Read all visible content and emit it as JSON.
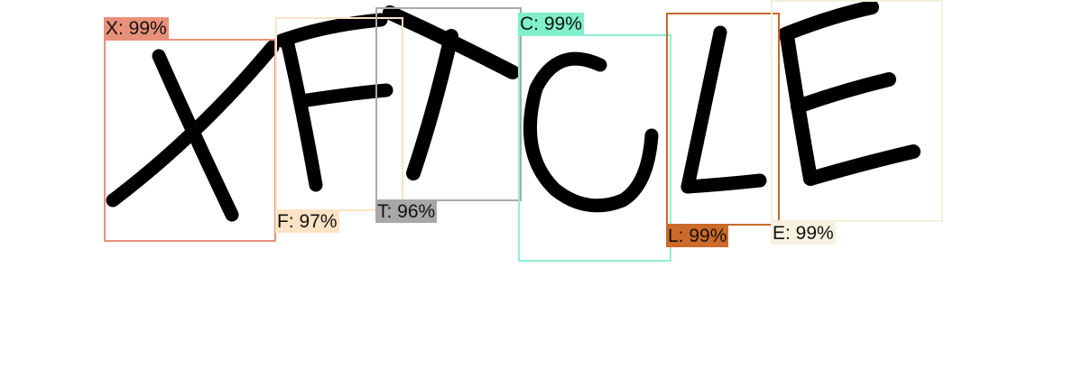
{
  "detections": [
    {
      "char": "X",
      "label": "X: 99%",
      "confidence": 0.99,
      "color": "#e8917a",
      "label_bg": "#e8917a"
    },
    {
      "char": "F",
      "label": "F: 97%",
      "confidence": 0.97,
      "color": "#fbe3c6",
      "label_bg": "#fde3c4"
    },
    {
      "char": "T",
      "label": "T: 96%",
      "confidence": 0.96,
      "color": "#aaaaaa",
      "label_bg": "#a8a8a8"
    },
    {
      "char": "C",
      "label": "C: 99%",
      "confidence": 0.99,
      "color": "#8ef2cf",
      "label_bg": "#7ff0c8"
    },
    {
      "char": "L",
      "label": "L: 99%",
      "confidence": 0.99,
      "color": "#c8682a",
      "label_bg": "#cc6a2a"
    },
    {
      "char": "E",
      "label": "E: 99%",
      "confidence": 0.99,
      "color": "#f3f1da",
      "label_bg": "#f5f3e0"
    }
  ]
}
